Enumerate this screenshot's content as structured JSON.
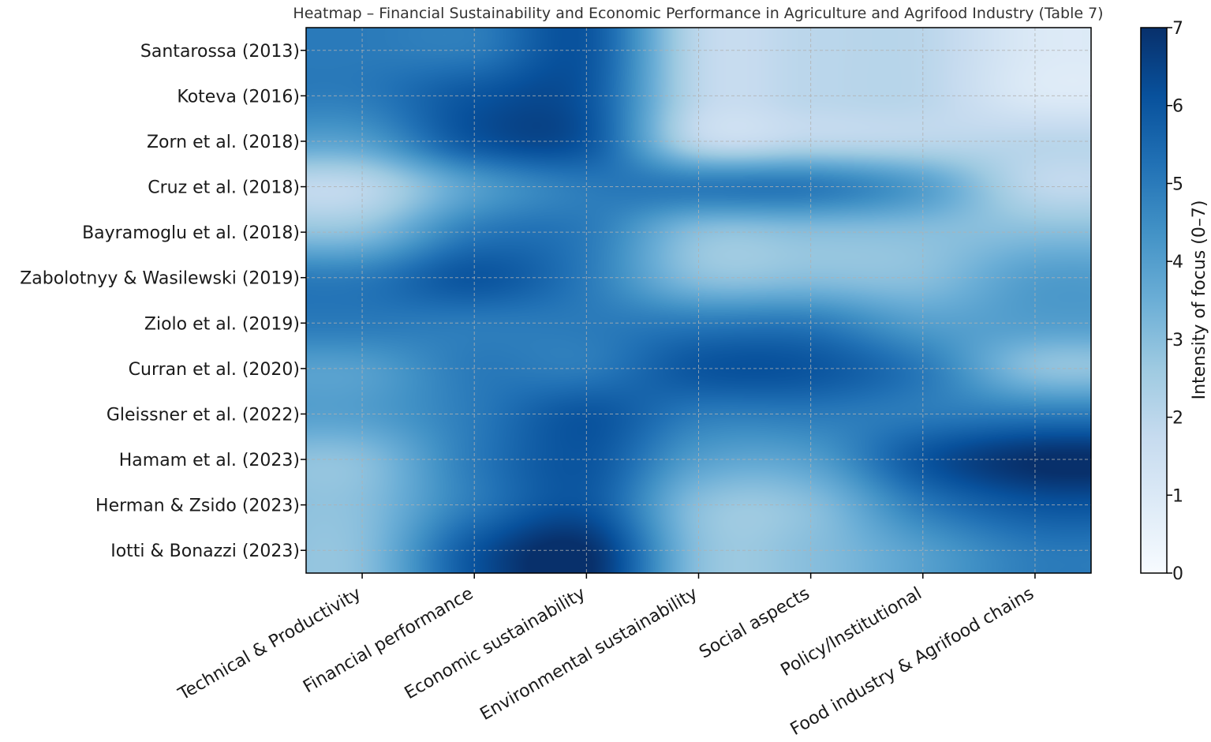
{
  "chart_data": {
    "type": "heatmap",
    "title": "Heatmap – Financial Sustainability and Economic Performance in Agriculture and Agrifood Industry (Table 7)",
    "xlabel": "",
    "ylabel": "",
    "colorbar_label": "Intensity of focus (0–7)",
    "colorbar_ticks": [
      "0",
      "1",
      "2",
      "3",
      "4",
      "5",
      "6",
      "7"
    ],
    "vmin": 0,
    "vmax": 7,
    "colormap": [
      "#f7fbff",
      "#deebf7",
      "#c6dbef",
      "#9ecae1",
      "#6baed6",
      "#4292c6",
      "#2171b5",
      "#08519c",
      "#08306b"
    ],
    "interpolation": "bicubic",
    "grid": true,
    "columns": [
      "Technical & Productivity",
      "Financial performance",
      "Economic sustainability",
      "Environmental sustainability",
      "Social aspects",
      "Policy/Institutional",
      "Food industry & Agrifood chains"
    ],
    "rows": [
      "Santarossa (2013)",
      "Koteva (2016)",
      "Zorn et al. (2018)",
      "Cruz et al. (2018)",
      "Bayramoglu et al. (2018)",
      "Zabolotnyy & Wasilewski (2019)",
      "Ziolo et al. (2019)",
      "Curran et al. (2020)",
      "Gleissner et al. (2022)",
      "Hamam et al. (2023)",
      "Herman & Zsido (2023)",
      "Iotti & Bonazzi (2023)"
    ],
    "values": [
      [
        5,
        5,
        6,
        2,
        2,
        2,
        1
      ],
      [
        5,
        6,
        6,
        2,
        2,
        2,
        1
      ],
      [
        4,
        6,
        6,
        2,
        2,
        2,
        2
      ],
      [
        2,
        4,
        5,
        5,
        5,
        4,
        2
      ],
      [
        3,
        5,
        5,
        3,
        3,
        3,
        3
      ],
      [
        5,
        6,
        5,
        3,
        3,
        3,
        4
      ],
      [
        5,
        5,
        5,
        5,
        5,
        4,
        4
      ],
      [
        4,
        5,
        5,
        6,
        6,
        5,
        3
      ],
      [
        4,
        5,
        6,
        5,
        5,
        5,
        5
      ],
      [
        3,
        5,
        6,
        4,
        4,
        6,
        7
      ],
      [
        3,
        5,
        6,
        3,
        3,
        5,
        6
      ],
      [
        3,
        6,
        7,
        3,
        3,
        4,
        5
      ]
    ]
  }
}
